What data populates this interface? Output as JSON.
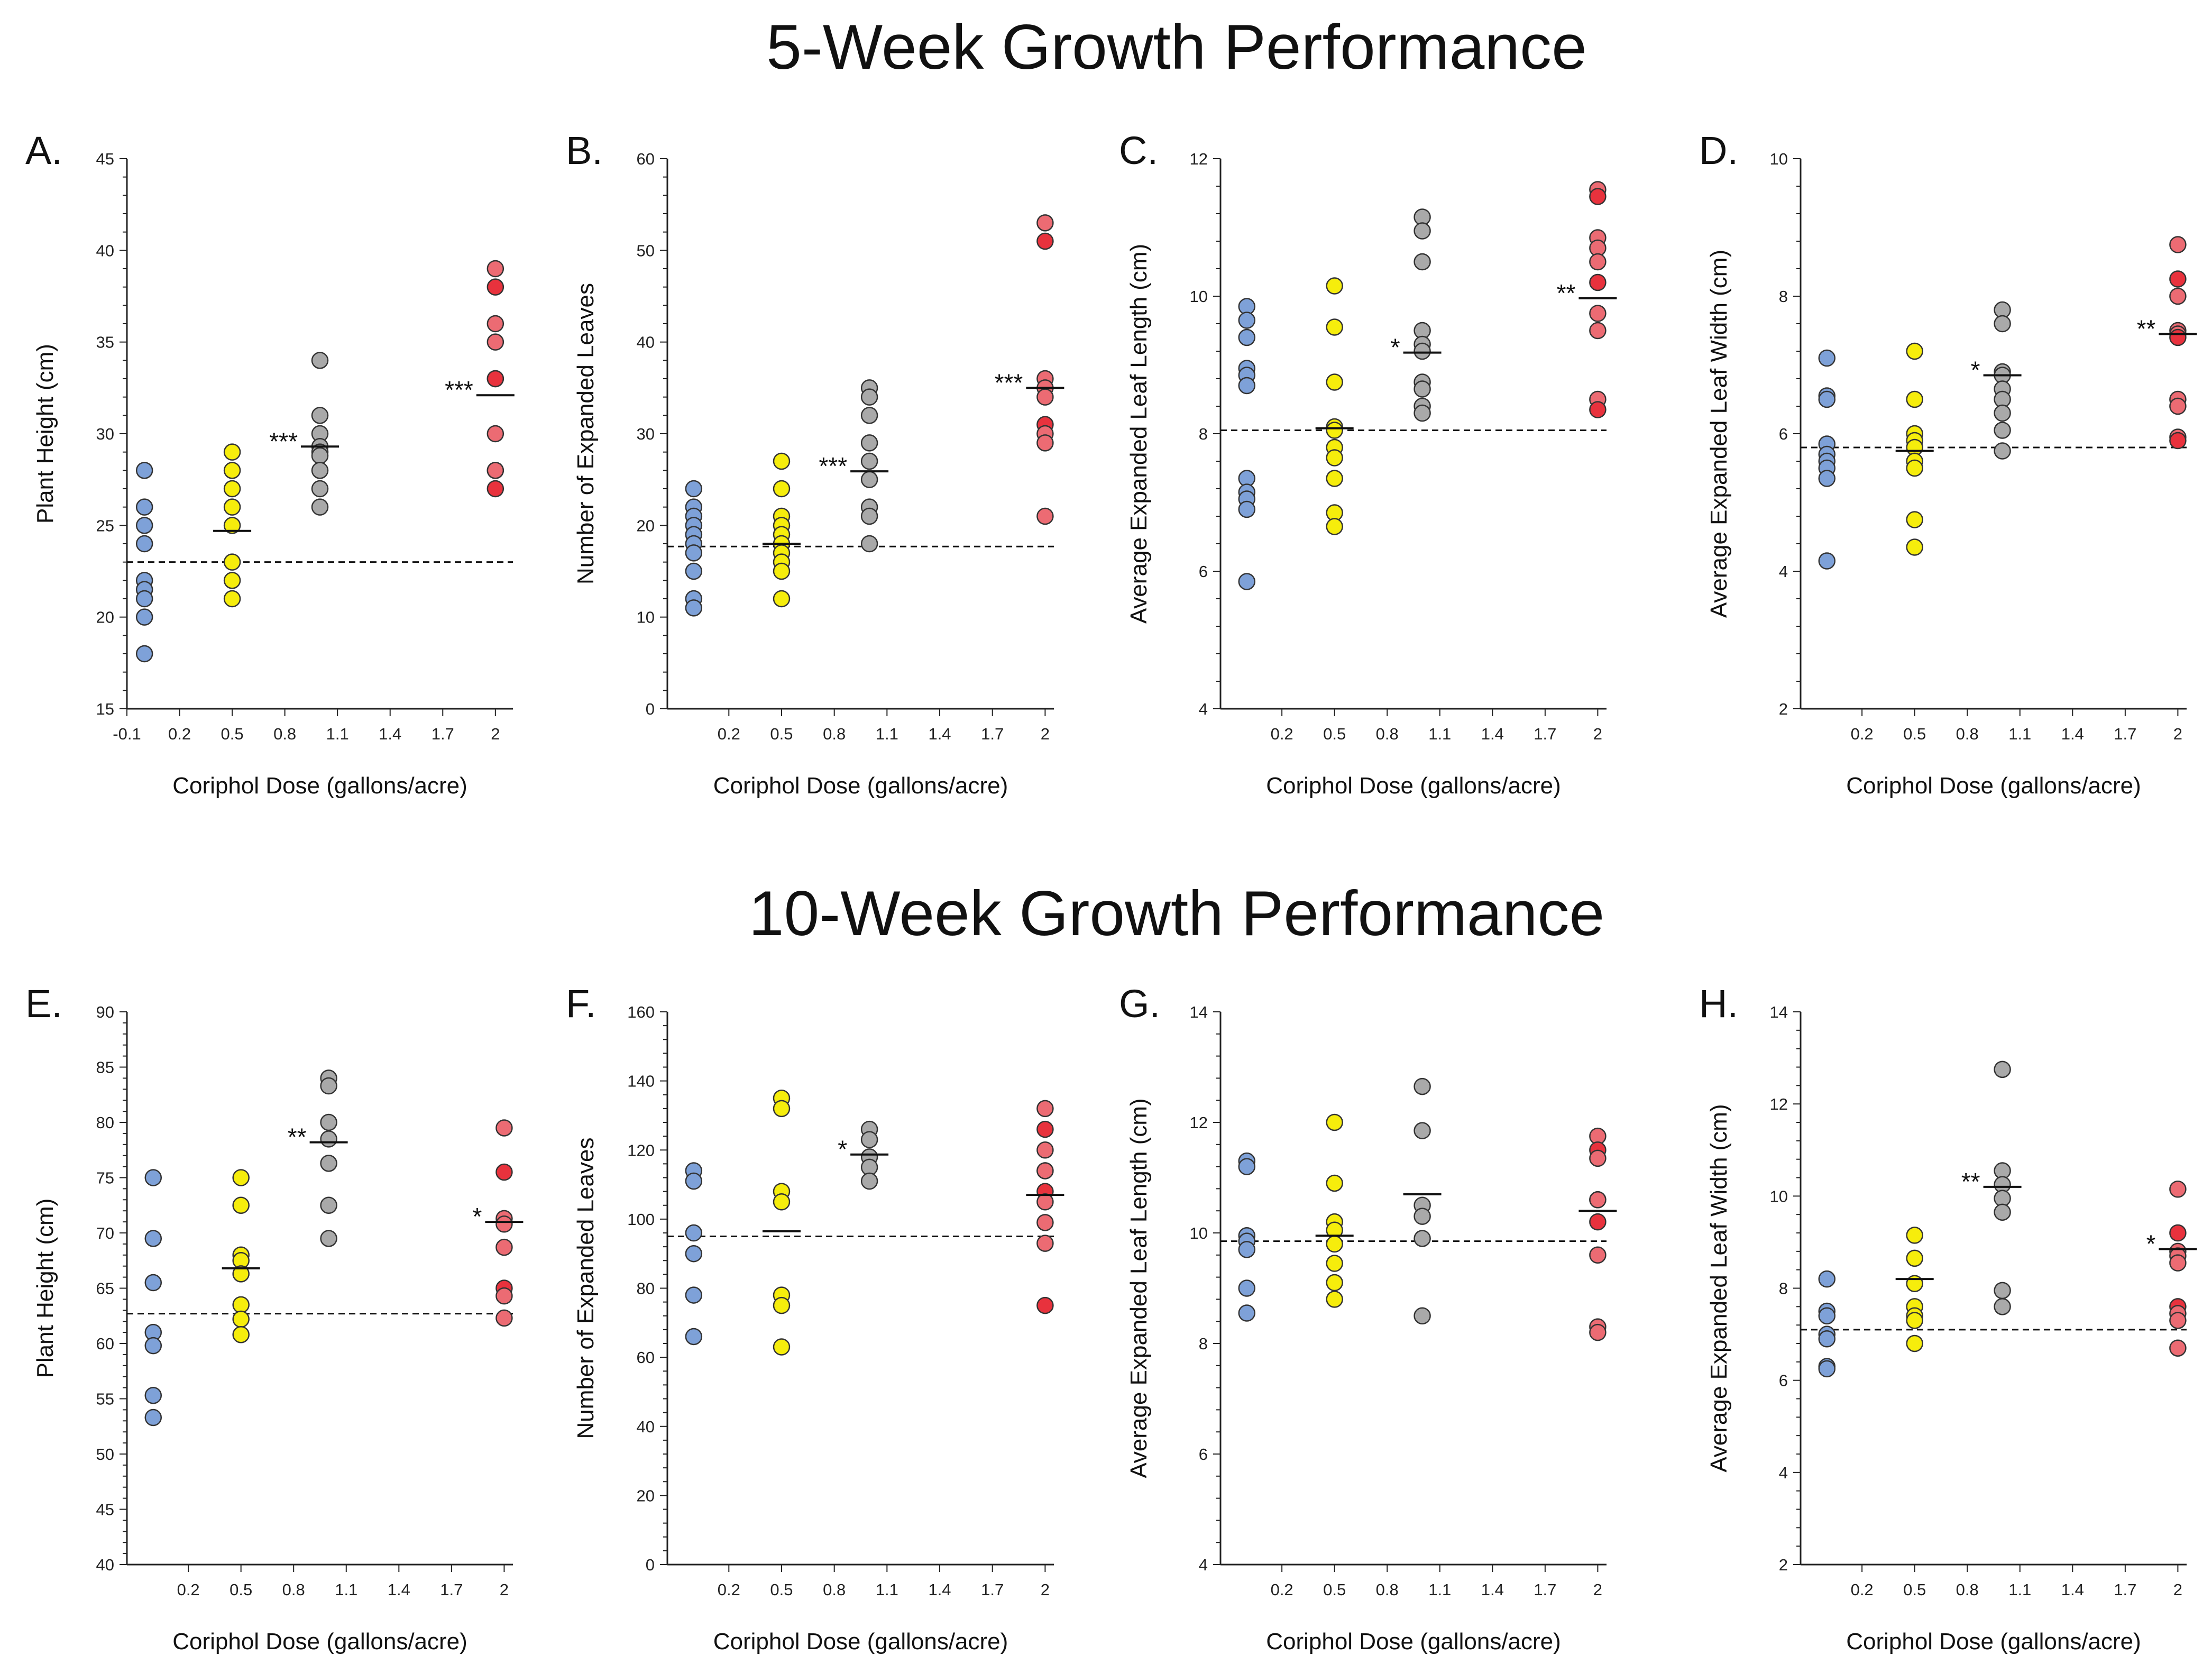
{
  "titles": {
    "top": "5-Week Growth Performance",
    "bottom": "10-Week Growth Performance"
  },
  "colors": {
    "control": "#7ea1d8",
    "dose05": "#f6ed0c",
    "dose1": "#a9a9a9",
    "dose2": "#ec6b73",
    "dose2_dark": "#e8323d",
    "edge": "#333333"
  },
  "chart_data": [
    {
      "type": "scatter",
      "panel": "A.",
      "title": "",
      "xlabel": "Coriphol Dose (gallons/acre)",
      "ylabel": "Plant Height (cm)",
      "ylim": [
        15,
        45
      ],
      "ymajor": 5,
      "yminor": 1,
      "xlim": [
        -0.1,
        2.1
      ],
      "xticks": [
        -0.1,
        0.2,
        0.5,
        0.8,
        1.1,
        1.4,
        1.7,
        2
      ],
      "xticklabels": [
        "-0.1",
        "0.2",
        "0.5",
        "0.8",
        "1.1",
        "1.4",
        "1.7",
        "2"
      ],
      "control_mean": 23,
      "series": [
        {
          "name": "0",
          "x": 0,
          "values": [
            28,
            26,
            25,
            24,
            22,
            21.5,
            21,
            20,
            18
          ],
          "mean": null,
          "sig": ""
        },
        {
          "name": "0.5",
          "x": 0.5,
          "values": [
            29,
            28,
            27,
            26,
            25,
            23,
            22,
            21
          ],
          "mean": 24.7,
          "sig": ""
        },
        {
          "name": "1",
          "x": 1,
          "values": [
            34,
            31,
            30,
            29.3,
            29,
            28.8,
            28,
            27,
            26
          ],
          "mean": 29.3,
          "sig": "***"
        },
        {
          "name": "2",
          "x": 2,
          "values": [
            39,
            38,
            36,
            35,
            33,
            33,
            30,
            28,
            28,
            27
          ],
          "mean": 32.1,
          "sig": "***"
        }
      ]
    },
    {
      "type": "scatter",
      "panel": "B.",
      "title": "",
      "xlabel": "Coriphol Dose (gallons/acre)",
      "ylabel": "Number of Expanded Leaves",
      "ylim": [
        0,
        60
      ],
      "ymajor": 10,
      "yminor": 2,
      "xlim": [
        -0.15,
        2.05
      ],
      "xticks": [
        0.2,
        0.5,
        0.8,
        1.1,
        1.4,
        1.7,
        2
      ],
      "xticklabels": [
        "0.2",
        "0.5",
        "0.8",
        "1.1",
        "1.4",
        "1.7",
        "2"
      ],
      "control_mean": 17.7,
      "series": [
        {
          "name": "0",
          "x": 0,
          "values": [
            24,
            22,
            21,
            20,
            19,
            18,
            17,
            15,
            12,
            11
          ],
          "mean": null,
          "sig": ""
        },
        {
          "name": "0.5",
          "x": 0.5,
          "values": [
            27,
            24,
            21,
            20,
            19,
            18,
            17,
            16,
            15,
            12
          ],
          "mean": 18,
          "sig": ""
        },
        {
          "name": "1",
          "x": 1,
          "values": [
            35,
            34,
            32,
            29,
            27,
            25,
            22,
            21,
            18
          ],
          "mean": 25.9,
          "sig": "***"
        },
        {
          "name": "2",
          "x": 2,
          "values": [
            53,
            51,
            36,
            35,
            34,
            31,
            30,
            29,
            21
          ],
          "mean": 35,
          "sig": "***"
        }
      ]
    },
    {
      "type": "scatter",
      "panel": "C.",
      "title": "",
      "xlabel": "Coriphol Dose (gallons/acre)",
      "ylabel": "Average Expanded Leaf Length (cm)",
      "ylim": [
        4,
        12
      ],
      "ymajor": 2,
      "yminor": 0.4,
      "xlim": [
        -0.15,
        2.05
      ],
      "xticks": [
        0.2,
        0.5,
        0.8,
        1.1,
        1.4,
        1.7,
        2
      ],
      "xticklabels": [
        "0.2",
        "0.5",
        "0.8",
        "1.1",
        "1.4",
        "1.7",
        "2"
      ],
      "control_mean": 8.05,
      "series": [
        {
          "name": "0",
          "x": 0,
          "values": [
            9.85,
            9.65,
            9.4,
            8.95,
            8.85,
            8.7,
            7.35,
            7.15,
            7.05,
            6.9,
            5.85
          ],
          "mean": null,
          "sig": ""
        },
        {
          "name": "0.5",
          "x": 0.5,
          "values": [
            10.15,
            9.55,
            8.75,
            8.1,
            8.05,
            7.8,
            7.65,
            7.35,
            6.85,
            6.65
          ],
          "mean": 8.08,
          "sig": ""
        },
        {
          "name": "1",
          "x": 1,
          "values": [
            11.15,
            10.95,
            10.5,
            9.5,
            9.3,
            9.2,
            8.75,
            8.65,
            8.4,
            8.3
          ],
          "mean": 9.18,
          "sig": "*"
        },
        {
          "name": "2",
          "x": 2,
          "values": [
            11.55,
            11.45,
            10.85,
            10.7,
            10.5,
            10.2,
            9.75,
            9.5,
            8.5,
            8.35
          ],
          "mean": 9.97,
          "sig": "**"
        }
      ]
    },
    {
      "type": "scatter",
      "panel": "D.",
      "title": "",
      "xlabel": "Coriphol Dose (gallons/acre)",
      "ylabel": "Average Expanded Leaf Width (cm)",
      "ylim": [
        2,
        10
      ],
      "ymajor": 2,
      "yminor": 0.4,
      "xlim": [
        -0.15,
        2.05
      ],
      "xticks": [
        0.2,
        0.5,
        0.8,
        1.1,
        1.4,
        1.7,
        2
      ],
      "xticklabels": [
        "0.2",
        "0.5",
        "0.8",
        "1.1",
        "1.4",
        "1.7",
        "2"
      ],
      "control_mean": 5.8,
      "series": [
        {
          "name": "0",
          "x": 0,
          "values": [
            7.1,
            6.55,
            6.5,
            5.85,
            5.7,
            5.6,
            5.5,
            5.35,
            4.15
          ],
          "mean": null,
          "sig": ""
        },
        {
          "name": "0.5",
          "x": 0.5,
          "values": [
            7.2,
            6.5,
            6.0,
            5.9,
            5.8,
            5.6,
            5.5,
            4.75,
            4.35
          ],
          "mean": 5.75,
          "sig": ""
        },
        {
          "name": "1",
          "x": 1,
          "values": [
            7.8,
            7.6,
            6.9,
            6.85,
            6.65,
            6.5,
            6.3,
            6.05,
            5.75
          ],
          "mean": 6.85,
          "sig": "*"
        },
        {
          "name": "2",
          "x": 2,
          "values": [
            8.75,
            8.25,
            8.0,
            7.5,
            7.45,
            7.4,
            6.5,
            6.4,
            5.95,
            5.9
          ],
          "mean": 7.45,
          "sig": "**"
        }
      ]
    },
    {
      "type": "scatter",
      "panel": "E.",
      "title": "",
      "xlabel": "Coriphol Dose (gallons/acre)",
      "ylabel": "Plant Height (cm)",
      "ylim": [
        40,
        90
      ],
      "ymajor": 5,
      "yminor": 1,
      "xlim": [
        -0.15,
        2.05
      ],
      "xticks": [
        0.2,
        0.5,
        0.8,
        1.1,
        1.4,
        1.7,
        2
      ],
      "xticklabels": [
        "0.2",
        "0.5",
        "0.8",
        "1.1",
        "1.4",
        "1.7",
        "2"
      ],
      "control_mean": 62.7,
      "series": [
        {
          "name": "0",
          "x": 0,
          "values": [
            75,
            69.5,
            65.5,
            61,
            59.8,
            55.3,
            53.3
          ],
          "mean": null,
          "sig": ""
        },
        {
          "name": "0.5",
          "x": 0.5,
          "values": [
            75,
            72.5,
            68,
            67.5,
            66.3,
            63.5,
            62.2,
            60.8
          ],
          "mean": 66.8,
          "sig": ""
        },
        {
          "name": "1",
          "x": 1,
          "values": [
            84,
            83.3,
            80,
            78.5,
            76.3,
            72.5,
            69.5
          ],
          "mean": 78.2,
          "sig": "**"
        },
        {
          "name": "2",
          "x": 2,
          "values": [
            79.5,
            75.5,
            71.3,
            70.8,
            68.7,
            65,
            64.3,
            62.3
          ],
          "mean": 71,
          "sig": "*"
        }
      ]
    },
    {
      "type": "scatter",
      "panel": "F.",
      "title": "",
      "xlabel": "Coriphol Dose (gallons/acre)",
      "ylabel": "Number of Expanded Leaves",
      "ylim": [
        0,
        160
      ],
      "ymajor": 20,
      "yminor": 4,
      "xlim": [
        -0.15,
        2.05
      ],
      "xticks": [
        0.2,
        0.5,
        0.8,
        1.1,
        1.4,
        1.7,
        2
      ],
      "xticklabels": [
        "0.2",
        "0.5",
        "0.8",
        "1.1",
        "1.4",
        "1.7",
        "2"
      ],
      "control_mean": 95,
      "series": [
        {
          "name": "0",
          "x": 0,
          "values": [
            114,
            111,
            96,
            90,
            78,
            66
          ],
          "mean": null,
          "sig": ""
        },
        {
          "name": "0.5",
          "x": 0.5,
          "values": [
            135,
            132,
            108,
            105,
            78,
            75,
            63
          ],
          "mean": 96.5,
          "sig": ""
        },
        {
          "name": "1",
          "x": 1,
          "values": [
            126,
            123,
            118,
            115,
            111
          ],
          "mean": 118.7,
          "sig": "*"
        },
        {
          "name": "2",
          "x": 2,
          "values": [
            132,
            126,
            120,
            114,
            114,
            108,
            105,
            99,
            93,
            75
          ],
          "mean": 107,
          "sig": ""
        }
      ]
    },
    {
      "type": "scatter",
      "panel": "G.",
      "title": "",
      "xlabel": "Coriphol Dose (gallons/acre)",
      "ylabel": "Average Expanded Leaf Length (cm)",
      "ylim": [
        4,
        14
      ],
      "ymajor": 2,
      "yminor": 0.4,
      "xlim": [
        -0.15,
        2.05
      ],
      "xticks": [
        0.2,
        0.5,
        0.8,
        1.1,
        1.4,
        1.7,
        2
      ],
      "xticklabels": [
        "0.2",
        "0.5",
        "0.8",
        "1.1",
        "1.4",
        "1.7",
        "2"
      ],
      "control_mean": 9.85,
      "series": [
        {
          "name": "0",
          "x": 0,
          "values": [
            11.3,
            11.2,
            9.95,
            9.85,
            9.7,
            9.0,
            8.55
          ],
          "mean": null,
          "sig": ""
        },
        {
          "name": "0.5",
          "x": 0.5,
          "values": [
            12.0,
            10.9,
            10.2,
            10.05,
            9.8,
            9.45,
            9.1,
            8.8
          ],
          "mean": 9.95,
          "sig": ""
        },
        {
          "name": "1",
          "x": 1,
          "values": [
            12.65,
            11.85,
            10.5,
            10.3,
            9.9,
            8.5
          ],
          "mean": 10.7,
          "sig": ""
        },
        {
          "name": "2",
          "x": 2,
          "values": [
            11.75,
            11.5,
            11.35,
            10.6,
            10.6,
            10.2,
            9.6,
            8.3,
            8.2
          ],
          "mean": 10.4,
          "sig": ""
        }
      ]
    },
    {
      "type": "scatter",
      "panel": "H.",
      "title": "",
      "xlabel": "Coriphol Dose (gallons/acre)",
      "ylabel": "Average Expanded Leaf Width (cm)",
      "ylim": [
        2,
        14
      ],
      "ymajor": 2,
      "yminor": 0.4,
      "xlim": [
        -0.15,
        2.05
      ],
      "xticks": [
        0.2,
        0.5,
        0.8,
        1.1,
        1.4,
        1.7,
        2
      ],
      "xticklabels": [
        "0.2",
        "0.5",
        "0.8",
        "1.1",
        "1.4",
        "1.7",
        "2"
      ],
      "control_mean": 7.1,
      "series": [
        {
          "name": "0",
          "x": 0,
          "values": [
            8.2,
            7.5,
            7.4,
            7.0,
            6.9,
            6.3,
            6.25
          ],
          "mean": null,
          "sig": ""
        },
        {
          "name": "0.5",
          "x": 0.5,
          "values": [
            9.15,
            8.65,
            8.1,
            7.6,
            7.4,
            7.3,
            6.8
          ],
          "mean": 8.2,
          "sig": ""
        },
        {
          "name": "1",
          "x": 1,
          "values": [
            12.75,
            10.55,
            10.25,
            9.95,
            9.65,
            7.95,
            7.6
          ],
          "mean": 10.2,
          "sig": "**"
        },
        {
          "name": "2",
          "x": 2,
          "values": [
            10.15,
            9.2,
            8.8,
            8.7,
            8.55,
            7.6,
            7.45,
            7.3,
            6.7
          ],
          "mean": 8.85,
          "sig": "*"
        }
      ]
    }
  ]
}
